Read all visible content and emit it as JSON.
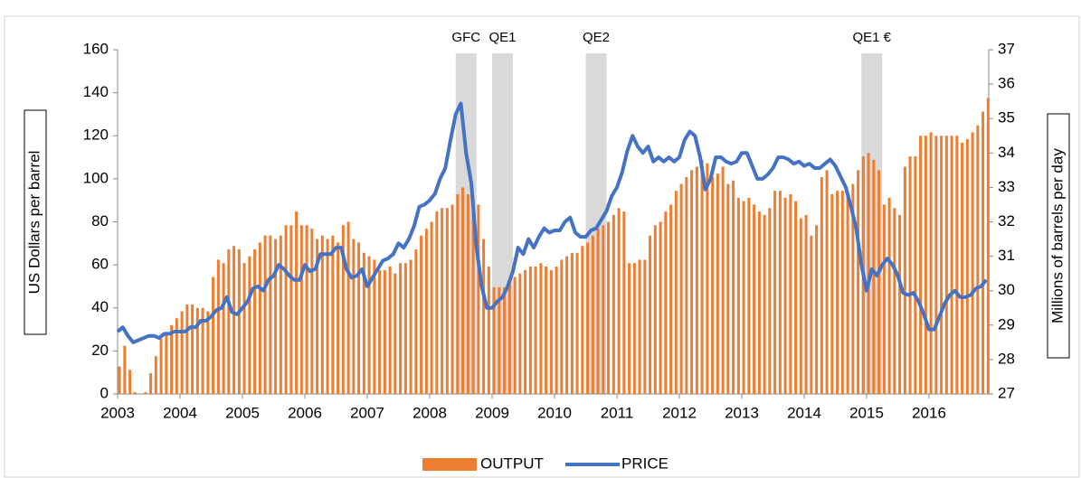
{
  "chart_data": {
    "type": "bar_line",
    "y_label": "US Dollars per barrel",
    "y2_label": "Millions of barrels per day",
    "categories": [
      "2003",
      null,
      null,
      null,
      null,
      null,
      null,
      null,
      null,
      null,
      null,
      null,
      "2004",
      null,
      null,
      null,
      null,
      null,
      null,
      null,
      null,
      null,
      null,
      null,
      "2005",
      null,
      null,
      null,
      null,
      null,
      null,
      null,
      null,
      null,
      null,
      null,
      "2006",
      null,
      null,
      null,
      null,
      null,
      null,
      null,
      null,
      null,
      null,
      null,
      "2007",
      null,
      null,
      null,
      null,
      null,
      null,
      null,
      null,
      null,
      null,
      null,
      "2008",
      null,
      null,
      null,
      null,
      null,
      null,
      null,
      null,
      null,
      null,
      null,
      "2009",
      null,
      null,
      null,
      null,
      null,
      null,
      null,
      null,
      null,
      null,
      null,
      "2010",
      null,
      null,
      null,
      null,
      null,
      null,
      null,
      null,
      null,
      null,
      null,
      "2011",
      null,
      null,
      null,
      null,
      null,
      null,
      null,
      null,
      null,
      null,
      null,
      "2012",
      null,
      null,
      null,
      null,
      null,
      null,
      null,
      null,
      null,
      null,
      null,
      "2013",
      null,
      null,
      null,
      null,
      null,
      null,
      null,
      null,
      null,
      null,
      null,
      "2014",
      null,
      null,
      null,
      null,
      null,
      null,
      null,
      null,
      null,
      null,
      null,
      "2015",
      null,
      null,
      null,
      null,
      null,
      null,
      null,
      null,
      null,
      null,
      null,
      "2016",
      null,
      null,
      null,
      null,
      null,
      null,
      null,
      null,
      null,
      null,
      null
    ],
    "series": [
      {
        "name": "OUTPUT",
        "type": "bar",
        "axis": "y2",
        "color": "#ed7d31",
        "values": [
          27.8,
          28.4,
          27.7,
          27.05,
          27.0,
          27.05,
          27.6,
          28.1,
          28.6,
          28.8,
          29.0,
          29.2,
          29.4,
          29.6,
          29.6,
          29.5,
          29.5,
          29.4,
          30.4,
          30.9,
          30.8,
          31.2,
          31.3,
          31.2,
          30.8,
          31.0,
          31.2,
          31.4,
          31.6,
          31.6,
          31.5,
          31.6,
          31.9,
          31.9,
          32.3,
          31.9,
          31.9,
          31.8,
          31.5,
          31.6,
          31.5,
          31.6,
          31.4,
          31.9,
          32.0,
          31.5,
          31.4,
          31.1,
          31.0,
          30.9,
          30.6,
          30.6,
          30.7,
          30.5,
          30.8,
          30.8,
          30.9,
          31.2,
          31.6,
          31.8,
          32.0,
          32.3,
          32.4,
          32.4,
          32.5,
          32.8,
          33.0,
          32.8,
          32.7,
          32.5,
          31.5,
          30.7,
          30.1,
          30.1,
          30.1,
          30.3,
          30.4,
          30.5,
          30.6,
          30.7,
          30.7,
          30.8,
          30.7,
          30.6,
          30.7,
          30.9,
          31.0,
          31.1,
          31.1,
          31.3,
          31.4,
          31.6,
          31.8,
          31.9,
          32.0,
          32.2,
          32.4,
          32.3,
          30.8,
          30.8,
          30.9,
          30.9,
          31.6,
          31.9,
          32.0,
          32.3,
          32.5,
          32.9,
          33.1,
          33.3,
          33.5,
          33.6,
          33.8,
          33.7,
          33.3,
          33.4,
          33.6,
          33.1,
          33.2,
          32.7,
          32.6,
          32.7,
          32.5,
          32.3,
          32.2,
          32.4,
          32.9,
          32.9,
          32.7,
          32.8,
          32.6,
          32.1,
          32.2,
          31.6,
          31.9,
          33.3,
          33.5,
          32.8,
          32.9,
          32.9,
          32.8,
          33.1,
          33.5,
          33.9,
          34.0,
          33.8,
          33.5,
          32.5,
          32.7,
          32.4,
          32.2,
          33.6,
          33.9,
          33.9,
          34.5,
          34.5,
          34.6,
          34.5,
          34.5,
          34.5,
          34.5,
          34.5,
          34.3,
          34.4,
          34.6,
          34.8,
          35.2,
          35.6
        ]
      },
      {
        "name": "PRICE",
        "type": "line",
        "color": "#4472c4",
        "values": [
          29,
          31,
          27,
          24,
          25,
          26,
          27,
          27,
          26,
          28,
          28,
          29,
          29,
          29,
          31,
          31,
          34,
          34,
          36,
          39,
          40,
          45,
          38,
          37,
          40,
          43,
          49,
          50,
          48,
          53,
          55,
          60,
          58,
          55,
          53,
          53,
          60,
          57,
          58,
          65,
          65,
          65,
          68,
          68,
          58,
          54,
          55,
          58,
          50,
          54,
          58,
          62,
          63,
          65,
          70,
          68,
          72,
          78,
          87,
          88,
          90,
          93,
          100,
          105,
          118,
          130,
          135,
          112,
          98,
          68,
          50,
          40,
          40,
          43,
          45,
          50,
          57,
          68,
          65,
          72,
          68,
          73,
          77,
          75,
          76,
          76,
          80,
          82,
          75,
          73,
          73,
          76,
          77,
          81,
          85,
          92,
          96,
          103,
          113,
          120,
          115,
          112,
          115,
          108,
          110,
          108,
          110,
          108,
          110,
          118,
          122,
          120,
          110,
          95,
          100,
          110,
          110,
          108,
          107,
          108,
          112,
          112,
          106,
          100,
          100,
          102,
          105,
          110,
          110,
          109,
          107,
          108,
          106,
          107,
          105,
          105,
          107,
          109,
          106,
          101,
          96,
          87,
          77,
          60,
          48,
          58,
          55,
          60,
          63,
          60,
          55,
          47,
          46,
          47,
          43,
          37,
          30,
          30,
          36,
          42,
          46,
          48,
          45,
          45,
          46,
          49,
          50,
          53
        ]
      }
    ],
    "annotations": [
      {
        "text": "GFC",
        "start": 65,
        "end": 69
      },
      {
        "text": "QE1",
        "start": 72,
        "end": 76
      },
      {
        "text": "QE2",
        "start": 90,
        "end": 94
      },
      {
        "text": "QE1 €",
        "start": 143,
        "end": 147
      }
    ],
    "ylim": [
      0,
      160
    ],
    "yticks": [
      0,
      20,
      40,
      60,
      80,
      100,
      120,
      140,
      160
    ],
    "y2lim": [
      27,
      37
    ],
    "y2ticks": [
      27,
      28,
      29,
      30,
      31,
      32,
      33,
      34,
      35,
      36,
      37
    ],
    "grid": false,
    "legend": "bottom"
  }
}
